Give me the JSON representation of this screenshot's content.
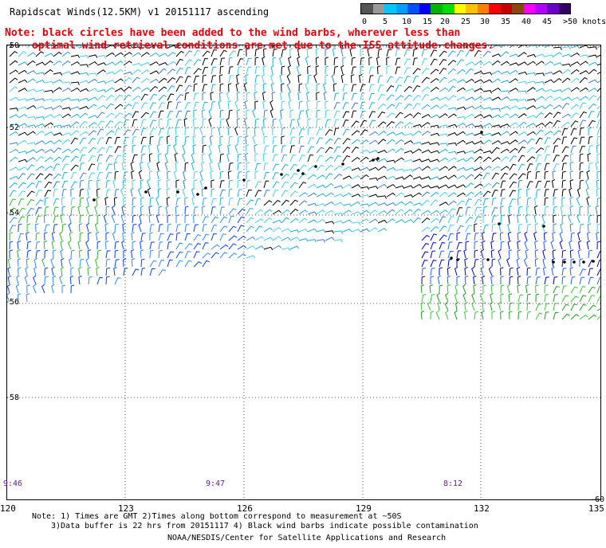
{
  "title": "Rapidscat Winds(12.5KM) v1 20151117 ascending",
  "notes": {
    "line1": "Note: black circles have been added to the wind barbs, wherever less than",
    "line2": "optimal wind retrieval conditions are met due to the ISS attitude changes."
  },
  "legend": {
    "colors": [
      "#555555",
      "#999999",
      "#00c8ff",
      "#00a0ff",
      "#0050ff",
      "#0000ff",
      "#00b400",
      "#00e000",
      "#ffff00",
      "#ffc000",
      "#ff8000",
      "#ff0000",
      "#c80000",
      "#8b4513",
      "#ff00ff",
      "#b400ff",
      "#6a00c8",
      "#330066"
    ],
    "ticks": [
      "0",
      "5",
      "10",
      "15",
      "20",
      "25",
      "30",
      "35",
      "40",
      "45",
      ">50 knots"
    ]
  },
  "map": {
    "lat_labels": [
      "-50",
      "-52",
      "-54",
      "-56",
      "-58",
      "-60"
    ],
    "lon_labels": [
      "120",
      "123",
      "126",
      "129",
      "132",
      "135"
    ],
    "time_labels": [
      "9:46",
      "9:47",
      "8:12"
    ]
  },
  "footer": {
    "line1": "Note: 1) Times are GMT 2)Times along bottom correspond to measurement at ~50S",
    "line2": "3)Data buffer is 22 hrs from 20151117 4) Black wind barbs indicate possible contamination",
    "line3": "NOAA/NESDIS/Center for Satellite Applications and Research"
  }
}
